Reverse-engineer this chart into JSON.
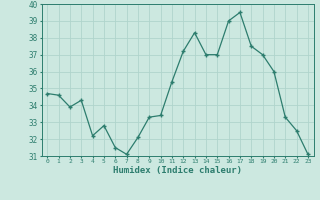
{
  "x": [
    0,
    1,
    2,
    3,
    4,
    5,
    6,
    7,
    8,
    9,
    10,
    11,
    12,
    13,
    14,
    15,
    16,
    17,
    18,
    19,
    20,
    21,
    22,
    23
  ],
  "y": [
    34.7,
    34.6,
    33.9,
    34.3,
    32.2,
    32.8,
    31.5,
    31.1,
    32.1,
    33.3,
    33.4,
    35.4,
    37.2,
    38.3,
    37.0,
    37.0,
    39.0,
    39.5,
    37.5,
    37.0,
    36.0,
    33.3,
    32.5,
    31.1
  ],
  "xlabel": "Humidex (Indice chaleur)",
  "ylim": [
    31,
    40
  ],
  "xlim": [
    -0.5,
    23.5
  ],
  "yticks": [
    31,
    32,
    33,
    34,
    35,
    36,
    37,
    38,
    39,
    40
  ],
  "xtick_labels": [
    "0",
    "1",
    "2",
    "3",
    "4",
    "5",
    "6",
    "7",
    "8",
    "9",
    "10",
    "11",
    "12",
    "13",
    "14",
    "15",
    "16",
    "17",
    "18",
    "19",
    "20",
    "21",
    "22",
    "23"
  ],
  "line_color": "#2d7d6e",
  "marker": "+",
  "bg_color": "#cce8e0",
  "grid_color": "#b0d4cc",
  "axis_color": "#2d7d6e",
  "tick_color": "#2d7d6e",
  "label_color": "#2d7d6e"
}
